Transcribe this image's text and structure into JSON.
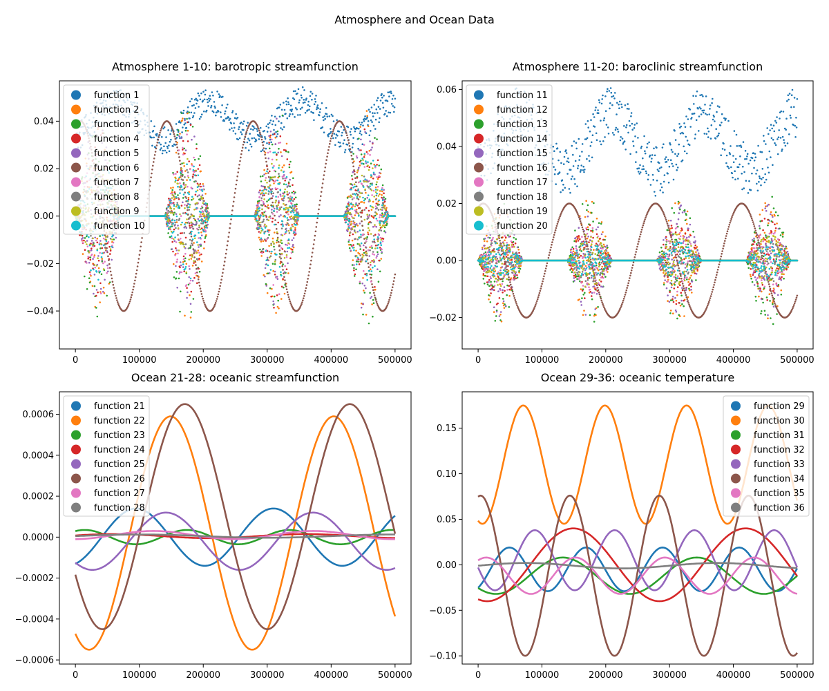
{
  "figure": {
    "suptitle": "Atmosphere and Ocean Data"
  },
  "palette": [
    "#1f77b4",
    "#ff7f0e",
    "#2ca02c",
    "#d62728",
    "#9467bd",
    "#8c564b",
    "#e377c2",
    "#7f7f7f",
    "#bcbd22",
    "#17becf"
  ],
  "chart_data": [
    {
      "type": "scatter",
      "title": "Atmosphere 1-10: barotropic streamfunction",
      "xlim": [
        -25000,
        525000
      ],
      "ylim": [
        -0.056,
        0.057
      ],
      "xticks": [
        0,
        100000,
        200000,
        300000,
        400000,
        500000
      ],
      "xtick_labels": [
        "0",
        "100000",
        "200000",
        "300000",
        "400000",
        "500000"
      ],
      "yticks": [
        -0.04,
        -0.02,
        0.0,
        0.02,
        0.04
      ],
      "ytick_labels": [
        "−0.04",
        "−0.02",
        "0.00",
        "0.02",
        "0.04"
      ],
      "legend_position": "upper-left",
      "grid": false,
      "series": [
        {
          "name": "function 1",
          "kind": "offset",
          "center": 0.038,
          "amp": 0.008,
          "period": 145000,
          "phase": -1.2,
          "noise": 0.012
        },
        {
          "name": "function 2",
          "kind": "burst",
          "amp": 0.045,
          "period": 140000,
          "phase": 0.0
        },
        {
          "name": "function 3",
          "kind": "burst",
          "amp": 0.048,
          "period": 140000,
          "phase": 0.0
        },
        {
          "name": "function 4",
          "kind": "burst",
          "amp": 0.04,
          "period": 140000,
          "phase": 0.0
        },
        {
          "name": "function 5",
          "kind": "burst",
          "amp": 0.042,
          "period": 140000,
          "phase": 0.0
        },
        {
          "name": "function 6",
          "kind": "smooth",
          "amp": 0.04,
          "period": 135000,
          "phase": 1.2
        },
        {
          "name": "function 7",
          "kind": "burst",
          "amp": 0.035,
          "period": 140000,
          "phase": 0.0
        },
        {
          "name": "function 8",
          "kind": "burst",
          "amp": 0.02,
          "period": 140000,
          "phase": 0.0
        },
        {
          "name": "function 9",
          "kind": "burst",
          "amp": 0.025,
          "period": 140000,
          "phase": 0.0
        },
        {
          "name": "function 10",
          "kind": "burst",
          "amp": 0.028,
          "period": 140000,
          "phase": 0.0
        }
      ]
    },
    {
      "type": "scatter",
      "title": "Atmosphere 11-20: baroclinic streamfunction",
      "xlim": [
        -25000,
        525000
      ],
      "ylim": [
        -0.031,
        0.063
      ],
      "xticks": [
        0,
        100000,
        200000,
        300000,
        400000,
        500000
      ],
      "xtick_labels": [
        "0",
        "100000",
        "200000",
        "300000",
        "400000",
        "500000"
      ],
      "yticks": [
        -0.02,
        0.0,
        0.02,
        0.04,
        0.06
      ],
      "ytick_labels": [
        "−0.02",
        "0.00",
        "0.02",
        "0.04",
        "0.06"
      ],
      "legend_position": "upper-left",
      "grid": false,
      "series": [
        {
          "name": "function 11",
          "kind": "offset",
          "center": 0.038,
          "amp": 0.01,
          "period": 145000,
          "phase": -1.2,
          "noise": 0.018
        },
        {
          "name": "function 12",
          "kind": "burst",
          "amp": 0.022,
          "period": 140000,
          "phase": 0.0
        },
        {
          "name": "function 13",
          "kind": "burst",
          "amp": 0.024,
          "period": 140000,
          "phase": 0.0
        },
        {
          "name": "function 14",
          "kind": "burst",
          "amp": 0.016,
          "period": 140000,
          "phase": 0.0
        },
        {
          "name": "function 15",
          "kind": "burst",
          "amp": 0.02,
          "period": 140000,
          "phase": 0.0
        },
        {
          "name": "function 16",
          "kind": "smooth",
          "amp": 0.02,
          "period": 135000,
          "phase": 1.2
        },
        {
          "name": "function 17",
          "kind": "burst",
          "amp": 0.012,
          "period": 140000,
          "phase": 0.0
        },
        {
          "name": "function 18",
          "kind": "burst",
          "amp": 0.008,
          "period": 140000,
          "phase": 0.0
        },
        {
          "name": "function 19",
          "kind": "burst",
          "amp": 0.01,
          "period": 140000,
          "phase": 0.0
        },
        {
          "name": "function 20",
          "kind": "burst",
          "amp": 0.007,
          "period": 140000,
          "phase": 0.0
        }
      ]
    },
    {
      "type": "line",
      "title": "Ocean 21-28: oceanic streamfunction",
      "xlim": [
        -25000,
        525000
      ],
      "ylim": [
        -0.00062,
        0.00071
      ],
      "xticks": [
        0,
        100000,
        200000,
        300000,
        400000,
        500000
      ],
      "xtick_labels": [
        "0",
        "100000",
        "200000",
        "300000",
        "400000",
        "500000"
      ],
      "yticks": [
        -0.0006,
        -0.0004,
        -0.0002,
        0.0,
        0.0002,
        0.0004,
        0.0006
      ],
      "ytick_labels": [
        "−0.0006",
        "−0.0004",
        "−0.0002",
        "0.0000",
        "0.0002",
        "0.0004",
        "0.0006"
      ],
      "legend_position": "upper-left",
      "grid": false,
      "series": [
        {
          "name": "function 21",
          "offset": 0.0,
          "amp": 0.00014,
          "period": 215000,
          "phase": -1.2
        },
        {
          "name": "function 22",
          "offset": 2e-05,
          "amp": 0.00057,
          "period": 255000,
          "phase": -2.1
        },
        {
          "name": "function 23",
          "offset": 0.0,
          "amp": 3.5e-05,
          "period": 160000,
          "phase": 1.0
        },
        {
          "name": "function 24",
          "offset": 5e-06,
          "amp": 1e-05,
          "period": 300000,
          "phase": 0.3
        },
        {
          "name": "function 25",
          "offset": -2e-05,
          "amp": 0.00014,
          "period": 230000,
          "phase": -2.3
        },
        {
          "name": "function 26",
          "offset": 0.0001,
          "amp": 0.00055,
          "period": 258000,
          "phase": -2.6
        },
        {
          "name": "function 27",
          "offset": 1e-05,
          "amp": 2e-05,
          "period": 250000,
          "phase": -1.5
        },
        {
          "name": "function 28",
          "offset": 5e-06,
          "amp": 8e-06,
          "period": 400000,
          "phase": 0.0
        }
      ]
    },
    {
      "type": "line",
      "title": "Ocean 29-36: oceanic temperature",
      "xlim": [
        -25000,
        525000
      ],
      "ylim": [
        -0.109,
        0.19
      ],
      "xticks": [
        0,
        100000,
        200000,
        300000,
        400000,
        500000
      ],
      "xtick_labels": [
        "0",
        "100000",
        "200000",
        "300000",
        "400000",
        "500000"
      ],
      "yticks": [
        -0.1,
        -0.05,
        0.0,
        0.05,
        0.1,
        0.15
      ],
      "ytick_labels": [
        "−0.10",
        "−0.05",
        "0.00",
        "0.05",
        "0.10",
        "0.15"
      ],
      "legend_position": "upper-right",
      "grid": false,
      "series": [
        {
          "name": "function 29",
          "offset": -0.005,
          "amp": 0.024,
          "period": 120000,
          "phase": -1.0
        },
        {
          "name": "function 30",
          "offset": 0.11,
          "amp": 0.065,
          "period": 128000,
          "phase": -1.9
        },
        {
          "name": "function 31",
          "offset": -0.012,
          "amp": 0.02,
          "period": 210000,
          "phase": -2.4
        },
        {
          "name": "function 32",
          "offset": 0.0,
          "amp": 0.04,
          "period": 270000,
          "phase": -1.9
        },
        {
          "name": "function 33",
          "offset": 0.005,
          "amp": 0.033,
          "period": 125000,
          "phase": -2.9
        },
        {
          "name": "function 34",
          "offset": -0.012,
          "amp": 0.088,
          "period": 140000,
          "phase": 1.4
        },
        {
          "name": "function 35",
          "offset": -0.012,
          "amp": 0.02,
          "period": 140000,
          "phase": 1.0
        },
        {
          "name": "function 36",
          "offset": -0.001,
          "amp": 0.003,
          "period": 300000,
          "phase": 0.0
        }
      ]
    }
  ]
}
